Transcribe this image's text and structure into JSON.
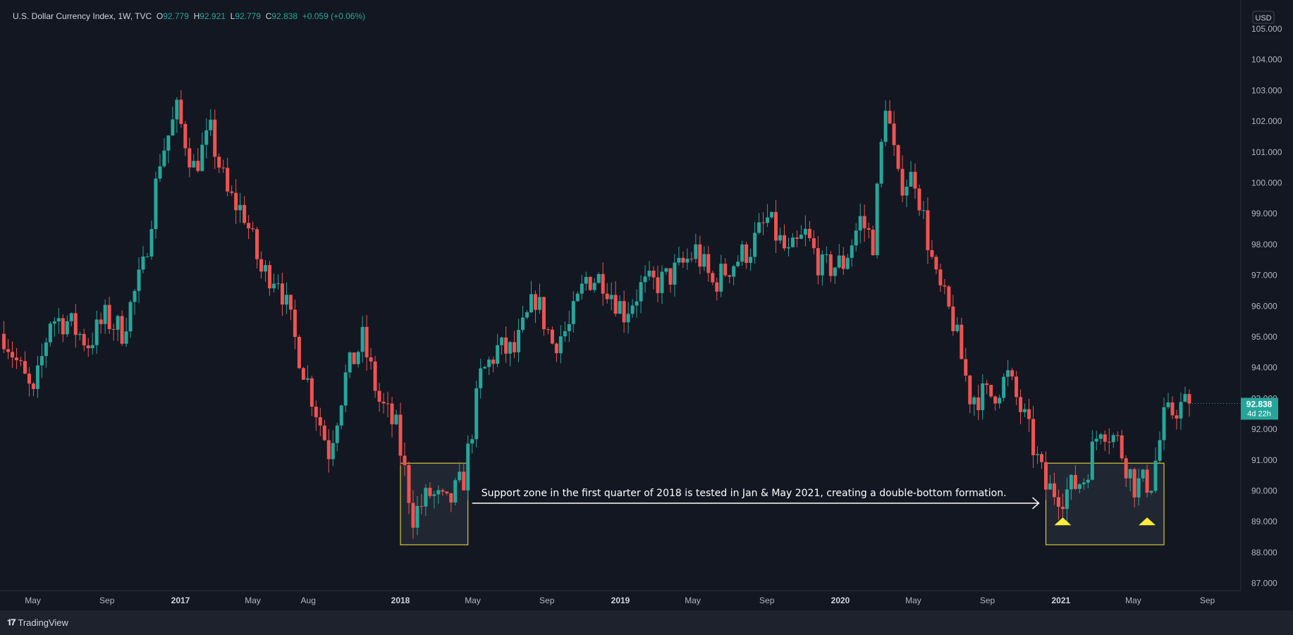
{
  "header": {
    "symbol": "U.S. Dollar Currency Index, 1W, TVC",
    "o_label": "O",
    "o_value": "92.779",
    "h_label": "H",
    "h_value": "92.921",
    "l_label": "L",
    "l_value": "92.779",
    "c_label": "C",
    "c_value": "92.838",
    "change": "+0.059 (+0.06%)"
  },
  "currency_label": "USD",
  "price_tag": {
    "price": "92.838",
    "countdown": "4d 22h"
  },
  "footer": {
    "brand": "TradingView"
  },
  "colors": {
    "background": "#131722",
    "up": "#26a69a",
    "down": "#ef5350",
    "zone": "#f5e642",
    "marker": "#ffeb3b",
    "axis_text": "#b2b5be"
  },
  "chart_data": {
    "type": "candlestick",
    "title": "U.S. Dollar Currency Index, 1W, TVC",
    "interval": "1W",
    "ylim": [
      86.6,
      105.4
    ],
    "y_ticks": [
      "87.000",
      "88.000",
      "89.000",
      "90.000",
      "91.000",
      "92.000",
      "93.000",
      "94.000",
      "95.000",
      "96.000",
      "97.000",
      "98.000",
      "99.000",
      "100.000",
      "101.000",
      "102.000",
      "103.000",
      "104.000",
      "105.000"
    ],
    "x_ticks": [
      {
        "label": "May",
        "bold": false,
        "date": "2016-05"
      },
      {
        "label": "Sep",
        "bold": false,
        "date": "2016-09"
      },
      {
        "label": "2017",
        "bold": true,
        "date": "2017-01"
      },
      {
        "label": "May",
        "bold": false,
        "date": "2017-05"
      },
      {
        "label": "Aug",
        "bold": false,
        "date": "2017-08"
      },
      {
        "label": "2018",
        "bold": true,
        "date": "2018-01"
      },
      {
        "label": "May",
        "bold": false,
        "date": "2018-05"
      },
      {
        "label": "Sep",
        "bold": false,
        "date": "2018-09"
      },
      {
        "label": "2019",
        "bold": true,
        "date": "2019-01"
      },
      {
        "label": "May",
        "bold": false,
        "date": "2019-05"
      },
      {
        "label": "Sep",
        "bold": false,
        "date": "2019-09"
      },
      {
        "label": "2020",
        "bold": true,
        "date": "2020-01"
      },
      {
        "label": "May",
        "bold": false,
        "date": "2020-05"
      },
      {
        "label": "Sep",
        "bold": false,
        "date": "2020-09"
      },
      {
        "label": "2021",
        "bold": true,
        "date": "2021-01"
      },
      {
        "label": "May",
        "bold": false,
        "date": "2021-05"
      },
      {
        "label": "Sep",
        "bold": false,
        "date": "2021-09"
      }
    ],
    "close_path": [
      {
        "date": "2016-03-14",
        "close": 95.1
      },
      {
        "date": "2016-05-02",
        "close": 93.0
      },
      {
        "date": "2016-05-30",
        "close": 95.6
      },
      {
        "date": "2016-06-27",
        "close": 95.5
      },
      {
        "date": "2016-08-01",
        "close": 94.8
      },
      {
        "date": "2016-08-29",
        "close": 95.6
      },
      {
        "date": "2016-09-26",
        "close": 95.2
      },
      {
        "date": "2016-10-31",
        "close": 97.2
      },
      {
        "date": "2016-11-28",
        "close": 100.8
      },
      {
        "date": "2016-12-26",
        "close": 102.3
      },
      {
        "date": "2017-01-23",
        "close": 100.5
      },
      {
        "date": "2017-02-20",
        "close": 101.6
      },
      {
        "date": "2017-03-20",
        "close": 99.6
      },
      {
        "date": "2017-04-17",
        "close": 99.0
      },
      {
        "date": "2017-05-15",
        "close": 97.1
      },
      {
        "date": "2017-06-12",
        "close": 97.0
      },
      {
        "date": "2017-07-10",
        "close": 94.9
      },
      {
        "date": "2017-08-07",
        "close": 93.1
      },
      {
        "date": "2017-09-04",
        "close": 91.3
      },
      {
        "date": "2017-10-02",
        "close": 93.7
      },
      {
        "date": "2017-10-30",
        "close": 94.9
      },
      {
        "date": "2017-11-27",
        "close": 92.9
      },
      {
        "date": "2017-12-25",
        "close": 92.0
      },
      {
        "date": "2018-01-22",
        "close": 89.2
      },
      {
        "date": "2018-02-19",
        "close": 89.9
      },
      {
        "date": "2018-03-19",
        "close": 89.5
      },
      {
        "date": "2018-04-16",
        "close": 90.4
      },
      {
        "date": "2018-05-14",
        "close": 93.7
      },
      {
        "date": "2018-06-11",
        "close": 94.6
      },
      {
        "date": "2018-07-09",
        "close": 94.5
      },
      {
        "date": "2018-08-13",
        "close": 96.3
      },
      {
        "date": "2018-09-10",
        "close": 94.8
      },
      {
        "date": "2018-10-08",
        "close": 95.3
      },
      {
        "date": "2018-11-05",
        "close": 96.9
      },
      {
        "date": "2018-12-03",
        "close": 96.9
      },
      {
        "date": "2019-01-07",
        "close": 95.8
      },
      {
        "date": "2019-02-04",
        "close": 96.6
      },
      {
        "date": "2019-03-11",
        "close": 96.8
      },
      {
        "date": "2019-04-08",
        "close": 97.2
      },
      {
        "date": "2019-05-06",
        "close": 97.8
      },
      {
        "date": "2019-06-03",
        "close": 96.7
      },
      {
        "date": "2019-07-01",
        "close": 97.3
      },
      {
        "date": "2019-08-05",
        "close": 97.9
      },
      {
        "date": "2019-09-02",
        "close": 98.8
      },
      {
        "date": "2019-10-07",
        "close": 97.6
      },
      {
        "date": "2019-11-04",
        "close": 98.3
      },
      {
        "date": "2019-12-02",
        "close": 97.2
      },
      {
        "date": "2020-01-06",
        "close": 97.4
      },
      {
        "date": "2020-02-03",
        "close": 98.8
      },
      {
        "date": "2020-02-24",
        "close": 98.1
      },
      {
        "date": "2020-03-16",
        "close": 102.7
      },
      {
        "date": "2020-04-06",
        "close": 100.0
      },
      {
        "date": "2020-05-04",
        "close": 100.2
      },
      {
        "date": "2020-06-08",
        "close": 96.8
      },
      {
        "date": "2020-07-06",
        "close": 95.5
      },
      {
        "date": "2020-08-03",
        "close": 93.1
      },
      {
        "date": "2020-09-07",
        "close": 93.1
      },
      {
        "date": "2020-10-05",
        "close": 93.7
      },
      {
        "date": "2020-11-02",
        "close": 92.3
      },
      {
        "date": "2020-12-07",
        "close": 90.1
      },
      {
        "date": "2021-01-04",
        "close": 89.9
      },
      {
        "date": "2021-02-08",
        "close": 90.4
      },
      {
        "date": "2021-03-08",
        "close": 92.2
      },
      {
        "date": "2021-04-05",
        "close": 91.6
      },
      {
        "date": "2021-05-03",
        "close": 90.2
      },
      {
        "date": "2021-05-31",
        "close": 90.3
      },
      {
        "date": "2021-06-21",
        "close": 92.3
      },
      {
        "date": "2021-07-12",
        "close": 92.7
      },
      {
        "date": "2021-08-02",
        "close": 92.838
      }
    ],
    "support_zones": [
      {
        "from": "2018-01-01",
        "to": "2018-04-23",
        "top": 90.9,
        "bottom": 88.25
      },
      {
        "from": "2020-12-07",
        "to": "2021-06-21",
        "top": 90.9,
        "bottom": 88.25
      }
    ],
    "double_bottom_markers": [
      {
        "date": "2021-01-04",
        "price": 89.0
      },
      {
        "date": "2021-05-24",
        "price": 89.0
      }
    ],
    "annotation": "Support zone in the first quarter of 2018 is tested in Jan & May 2021, creating a double-bottom formation."
  }
}
